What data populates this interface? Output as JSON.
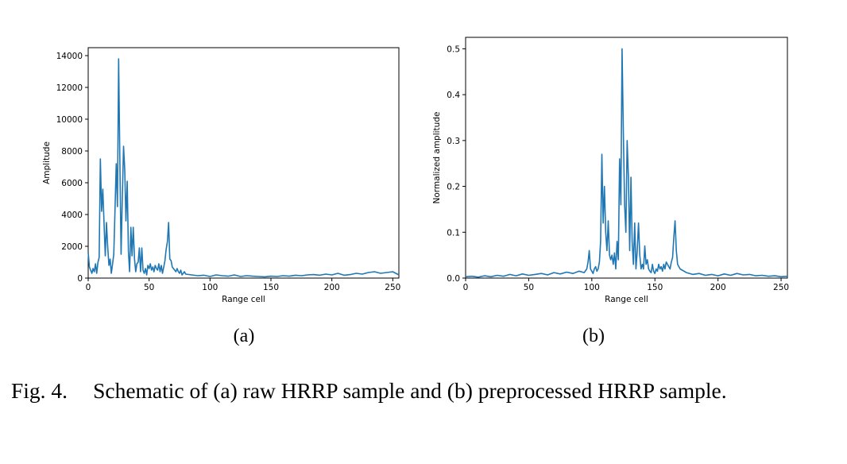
{
  "colors": {
    "series": "#1f77b4",
    "axis": "#000000",
    "background": "#ffffff"
  },
  "caption": {
    "label": "Fig. 4.",
    "text": "Schematic of (a) raw HRRP sample and (b) preprocessed HRRP sample."
  },
  "chart_data": [
    {
      "type": "line",
      "subcaption": "(a)",
      "xlabel": "Range cell",
      "ylabel": "Amplitude",
      "xlim": [
        0,
        255
      ],
      "ylim": [
        0,
        14500
      ],
      "xticks": [
        0,
        50,
        100,
        150,
        200,
        250
      ],
      "yticks": [
        0,
        2000,
        4000,
        6000,
        8000,
        10000,
        12000,
        14000
      ],
      "ytick_labels": [
        "0",
        "2000",
        "4000",
        "6000",
        "8000",
        "10000",
        "12000",
        "14000"
      ],
      "grid": false,
      "series": [
        {
          "x": [
            0,
            1,
            2,
            3,
            4,
            5,
            6,
            7,
            8,
            9,
            10,
            11,
            12,
            13,
            14,
            15,
            16,
            17,
            18,
            19,
            20,
            21,
            22,
            23,
            24,
            25,
            26,
            27,
            28,
            29,
            30,
            31,
            32,
            33,
            34,
            35,
            36,
            37,
            38,
            39,
            40,
            41,
            42,
            43,
            44,
            45,
            46,
            47,
            48,
            49,
            50,
            51,
            52,
            53,
            54,
            55,
            56,
            57,
            58,
            59,
            60,
            61,
            62,
            63,
            64,
            65,
            66,
            67,
            68,
            69,
            70,
            71,
            72,
            73,
            74,
            75,
            76,
            77,
            78,
            79,
            80,
            85,
            90,
            95,
            100,
            105,
            110,
            115,
            120,
            125,
            130,
            135,
            140,
            145,
            150,
            155,
            160,
            165,
            170,
            175,
            180,
            185,
            190,
            195,
            200,
            205,
            210,
            215,
            220,
            225,
            230,
            235,
            240,
            245,
            250,
            255
          ],
          "y": [
            1600,
            700,
            500,
            300,
            600,
            400,
            900,
            300,
            1000,
            1300,
            7500,
            4200,
            5600,
            3500,
            1400,
            3500,
            2000,
            800,
            1200,
            300,
            900,
            1500,
            4200,
            7200,
            4500,
            13800,
            7200,
            1500,
            5000,
            8300,
            6800,
            3600,
            6100,
            1700,
            400,
            3200,
            1400,
            3200,
            1200,
            400,
            900,
            1000,
            1900,
            400,
            1900,
            500,
            300,
            600,
            200,
            800,
            600,
            900,
            500,
            700,
            400,
            800,
            600,
            500,
            900,
            400,
            800,
            300,
            700,
            1100,
            1800,
            2300,
            3500,
            1200,
            1100,
            700,
            600,
            500,
            400,
            600,
            400,
            300,
            500,
            200,
            300,
            400,
            250,
            200,
            150,
            180,
            100,
            200,
            150,
            120,
            200,
            100,
            150,
            120,
            100,
            80,
            120,
            100,
            150,
            120,
            180,
            150,
            200,
            220,
            180,
            250,
            200,
            300,
            180,
            220,
            300,
            250,
            350,
            400,
            300,
            350,
            400,
            200
          ]
        }
      ]
    },
    {
      "type": "line",
      "subcaption": "(b)",
      "xlabel": "Range cell",
      "ylabel": "Normalized amplitude",
      "xlim": [
        0,
        255
      ],
      "ylim": [
        0,
        0.525
      ],
      "xticks": [
        0,
        50,
        100,
        150,
        200,
        250
      ],
      "yticks": [
        0,
        0.1,
        0.2,
        0.3,
        0.4,
        0.5
      ],
      "ytick_labels": [
        "0.0",
        "0.1",
        "0.2",
        "0.3",
        "0.4",
        "0.5"
      ],
      "grid": false,
      "series": [
        {
          "x": [
            0,
            5,
            10,
            15,
            20,
            25,
            30,
            35,
            40,
            45,
            50,
            55,
            60,
            65,
            70,
            75,
            80,
            85,
            90,
            94,
            96,
            97,
            98,
            99,
            100,
            101,
            102,
            103,
            104,
            105,
            106,
            107,
            108,
            109,
            110,
            111,
            112,
            113,
            114,
            115,
            116,
            117,
            118,
            119,
            120,
            121,
            122,
            123,
            124,
            125,
            126,
            127,
            128,
            129,
            130,
            131,
            132,
            133,
            134,
            135,
            136,
            137,
            138,
            139,
            140,
            141,
            142,
            143,
            144,
            145,
            146,
            147,
            148,
            149,
            150,
            151,
            152,
            153,
            154,
            155,
            156,
            157,
            158,
            159,
            160,
            161,
            162,
            163,
            164,
            165,
            166,
            167,
            168,
            170,
            175,
            180,
            185,
            190,
            195,
            200,
            205,
            210,
            215,
            220,
            225,
            230,
            235,
            240,
            245,
            250,
            255
          ],
          "y": [
            0.003,
            0.004,
            0.002,
            0.005,
            0.003,
            0.006,
            0.004,
            0.008,
            0.005,
            0.009,
            0.006,
            0.008,
            0.01,
            0.007,
            0.012,
            0.009,
            0.013,
            0.01,
            0.015,
            0.012,
            0.02,
            0.035,
            0.06,
            0.02,
            0.015,
            0.01,
            0.02,
            0.025,
            0.015,
            0.02,
            0.035,
            0.08,
            0.27,
            0.12,
            0.2,
            0.1,
            0.06,
            0.125,
            0.05,
            0.04,
            0.05,
            0.03,
            0.055,
            0.02,
            0.08,
            0.04,
            0.26,
            0.16,
            0.5,
            0.32,
            0.16,
            0.1,
            0.3,
            0.22,
            0.06,
            0.22,
            0.08,
            0.03,
            0.12,
            0.02,
            0.06,
            0.12,
            0.05,
            0.02,
            0.03,
            0.02,
            0.07,
            0.03,
            0.04,
            0.02,
            0.015,
            0.012,
            0.03,
            0.015,
            0.01,
            0.02,
            0.015,
            0.03,
            0.02,
            0.025,
            0.015,
            0.03,
            0.02,
            0.035,
            0.03,
            0.025,
            0.02,
            0.035,
            0.045,
            0.09,
            0.125,
            0.06,
            0.03,
            0.02,
            0.012,
            0.008,
            0.01,
            0.006,
            0.008,
            0.005,
            0.009,
            0.006,
            0.01,
            0.007,
            0.008,
            0.005,
            0.006,
            0.004,
            0.005,
            0.003,
            0.004
          ]
        }
      ]
    }
  ]
}
